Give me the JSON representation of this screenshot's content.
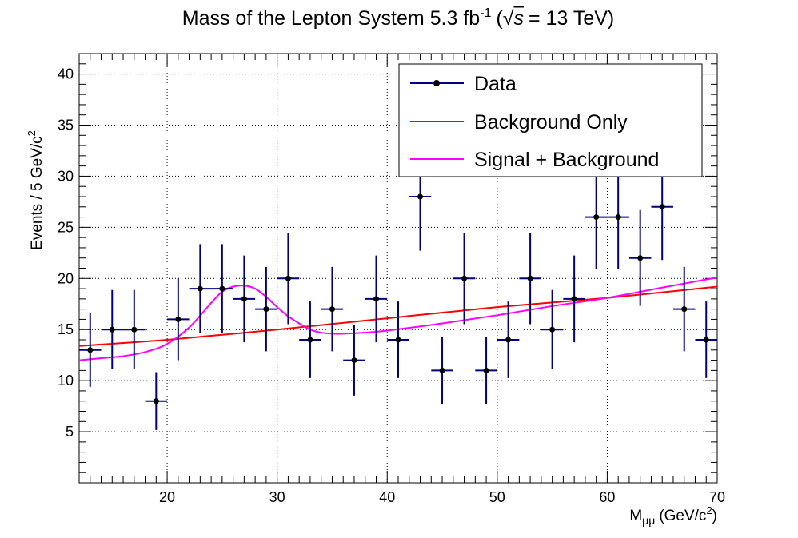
{
  "chart_data": {
    "type": "scatter",
    "title": {
      "main": "Mass of the Lepton System 5.3 fb",
      "main_sup": "-1",
      "energy_open": "(",
      "sqrt_sign": "√",
      "energy_var": "s",
      "energy_close": "= 13 TeV)"
    },
    "xlabel": {
      "prefix": "M",
      "sub": "μμ",
      "unit": "(GeV/c",
      "unit_sup": "2",
      "unit_close": ")"
    },
    "ylabel": {
      "text": "Events / 5 GeV/c",
      "sup": "2"
    },
    "xlim": [
      12,
      70
    ],
    "ylim": [
      0,
      42
    ],
    "xticks": [
      20,
      30,
      40,
      50,
      60,
      70
    ],
    "xtick_labels": [
      "20",
      "30",
      "40",
      "50",
      "60",
      "70"
    ],
    "yticks": [
      5,
      10,
      15,
      20,
      25,
      30,
      35,
      40
    ],
    "ytick_labels": [
      "5",
      "10",
      "15",
      "20",
      "25",
      "30",
      "35",
      "40"
    ],
    "grid": true,
    "legend_position": "top-right",
    "legend": [
      "Data",
      "Background Only",
      "Signal + Background"
    ],
    "colors": {
      "data": "#000080",
      "marker": "#000000",
      "background": "#ff0000",
      "signal": "#ff00ff"
    },
    "series": [
      {
        "name": "Data",
        "kind": "points_with_errors",
        "bin_half_width": 1,
        "x": [
          13,
          15,
          17,
          19,
          21,
          23,
          25,
          27,
          29,
          31,
          33,
          35,
          37,
          39,
          41,
          43,
          45,
          47,
          49,
          51,
          53,
          55,
          57,
          59,
          61,
          63,
          65,
          67,
          69
        ],
        "y": [
          13,
          15,
          15,
          8,
          16,
          19,
          19,
          18,
          17,
          20,
          14,
          17,
          12,
          18,
          14,
          28,
          11,
          20,
          11,
          14,
          20,
          15,
          18,
          26,
          26,
          22,
          27,
          17,
          14
        ]
      },
      {
        "name": "Background Only",
        "kind": "line",
        "x": [
          12,
          20,
          30,
          40,
          50,
          60,
          70
        ],
        "y": [
          13.4,
          14.0,
          15.0,
          16.1,
          17.2,
          18.1,
          19.2
        ]
      },
      {
        "name": "Signal + Background",
        "kind": "line",
        "x": [
          12,
          14,
          16,
          18,
          20,
          22,
          24,
          25,
          26,
          27,
          28,
          29,
          30,
          31,
          32,
          33,
          34,
          35,
          36,
          38,
          40,
          45,
          50,
          55,
          60,
          65,
          70
        ],
        "y": [
          12.0,
          12.2,
          12.4,
          12.8,
          13.6,
          15.2,
          17.6,
          18.7,
          19.2,
          19.3,
          19.0,
          18.2,
          17.2,
          16.3,
          15.6,
          15.0,
          14.7,
          14.6,
          14.6,
          14.7,
          14.9,
          15.6,
          16.4,
          17.3,
          18.1,
          19.1,
          20.1
        ]
      }
    ]
  }
}
